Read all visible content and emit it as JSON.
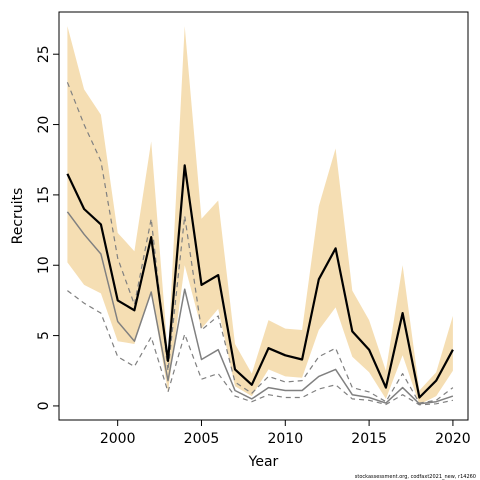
{
  "chart_data": {
    "type": "line",
    "xlabel": "Year",
    "ylabel": "Recruits",
    "xlim": [
      1996.5,
      2020.9
    ],
    "ylim": [
      -1,
      28
    ],
    "x_ticks": [
      2000,
      2005,
      2010,
      2015,
      2020
    ],
    "x_tick_labels": [
      "2000",
      "2005",
      "2010",
      "2015",
      "2020"
    ],
    "y_ticks": [
      0,
      5,
      10,
      15,
      20,
      25
    ],
    "y_tick_labels": [
      "0",
      "5",
      "10",
      "15",
      "20",
      "25"
    ],
    "grid": false,
    "legend": "none",
    "footnote": "stockassessment.org, codfaxt2021_new, r14260",
    "years": [
      1997,
      1998,
      1999,
      2000,
      2001,
      2002,
      2003,
      2004,
      2005,
      2006,
      2007,
      2008,
      2009,
      2010,
      2011,
      2012,
      2013,
      2014,
      2015,
      2016,
      2017,
      2018,
      2019,
      2020
    ],
    "series": [
      {
        "role": "ci-upper",
        "values": [
          27.0,
          22.5,
          20.7,
          12.3,
          11.0,
          18.8,
          3.6,
          27.0,
          13.3,
          14.6,
          4.4,
          2.3,
          6.1,
          5.5,
          5.4,
          14.2,
          18.3,
          8.2,
          6.1,
          2.5,
          10.0,
          1.1,
          2.4,
          6.4
        ]
      },
      {
        "role": "ci-lower",
        "values": [
          10.2,
          8.6,
          8.0,
          4.6,
          4.4,
          8.1,
          1.0,
          10.0,
          5.5,
          6.9,
          1.4,
          0.7,
          2.6,
          2.1,
          2.0,
          5.4,
          7.0,
          3.5,
          2.4,
          0.5,
          3.6,
          0.1,
          0.7,
          2.5
        ]
      },
      {
        "role": "estimate",
        "values": [
          16.5,
          14.0,
          12.9,
          7.5,
          6.8,
          12.0,
          3.2,
          17.1,
          8.6,
          9.3,
          2.6,
          1.5,
          4.1,
          3.6,
          3.3,
          9.0,
          11.2,
          5.3,
          4.0,
          1.3,
          6.6,
          0.6,
          1.8,
          4.0
        ]
      },
      {
        "role": "alt-estimate",
        "values": [
          13.8,
          12.2,
          10.8,
          6.0,
          4.6,
          8.1,
          1.8,
          8.3,
          3.3,
          4.0,
          1.1,
          0.5,
          1.3,
          1.1,
          1.1,
          2.1,
          2.6,
          0.8,
          0.6,
          0.2,
          1.3,
          0.15,
          0.3,
          0.7
        ]
      },
      {
        "role": "alt-upper",
        "values": [
          23.0,
          20.0,
          17.4,
          10.5,
          7.2,
          13.3,
          2.5,
          13.5,
          5.4,
          6.4,
          1.7,
          0.9,
          2.1,
          1.7,
          1.8,
          3.5,
          4.1,
          1.3,
          1.0,
          0.3,
          2.3,
          0.2,
          0.4,
          1.3
        ]
      },
      {
        "role": "alt-lower",
        "values": [
          8.2,
          7.3,
          6.6,
          3.5,
          2.8,
          4.9,
          1.0,
          5.1,
          1.9,
          2.3,
          0.7,
          0.3,
          0.8,
          0.6,
          0.6,
          1.2,
          1.5,
          0.5,
          0.4,
          0.1,
          0.8,
          0.08,
          0.15,
          0.4
        ]
      }
    ],
    "colors": {
      "ci_band": "#f5deb3",
      "estimate_line": "#000000",
      "alt_estimate_line": "#808080",
      "alt_ci_lines": "#808080",
      "axis": "#000000"
    }
  }
}
